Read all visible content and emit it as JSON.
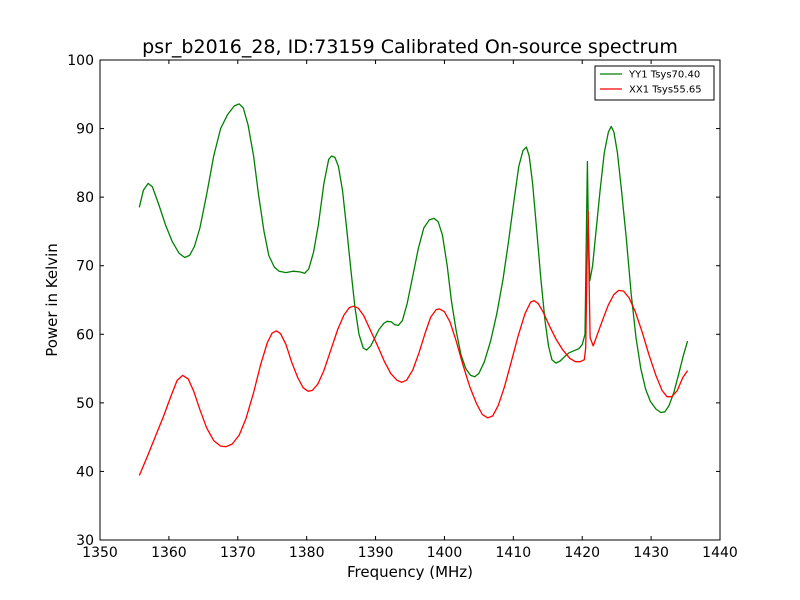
{
  "chart_data": {
    "type": "line",
    "title": "psr_b2016_28, ID:73159 Calibrated On-source spectrum",
    "xlabel": "Frequency (MHz)",
    "ylabel": "Power in Kelvin",
    "xlim": [
      1350,
      1440
    ],
    "ylim": [
      30,
      100
    ],
    "xticks": [
      "1350",
      "1360",
      "1370",
      "1380",
      "1390",
      "1400",
      "1410",
      "1420",
      "1430",
      "1440"
    ],
    "yticks": [
      "30",
      "40",
      "50",
      "60",
      "70",
      "80",
      "90",
      "100"
    ],
    "grid": false,
    "legend_position": "top-right",
    "series": [
      {
        "name": "YY1 Tsys70.40",
        "color": "#008000",
        "points": [
          [
            1355.7,
            78.5
          ],
          [
            1356.3,
            81
          ],
          [
            1357,
            82
          ],
          [
            1357.6,
            81.5
          ],
          [
            1358.5,
            79
          ],
          [
            1359.5,
            76
          ],
          [
            1360.5,
            73.5
          ],
          [
            1361.5,
            71.8
          ],
          [
            1362.3,
            71.2
          ],
          [
            1363,
            71.5
          ],
          [
            1363.7,
            72.8
          ],
          [
            1364.5,
            75.5
          ],
          [
            1365.5,
            80.5
          ],
          [
            1366.5,
            86
          ],
          [
            1367.5,
            90
          ],
          [
            1368.5,
            92
          ],
          [
            1369.5,
            93.3
          ],
          [
            1370.2,
            93.6
          ],
          [
            1370.8,
            93
          ],
          [
            1371.5,
            90.5
          ],
          [
            1372.3,
            86
          ],
          [
            1373,
            80.5
          ],
          [
            1373.8,
            75
          ],
          [
            1374.5,
            71.5
          ],
          [
            1375.3,
            69.8
          ],
          [
            1376,
            69.2
          ],
          [
            1377,
            69
          ],
          [
            1378,
            69.2
          ],
          [
            1379,
            69.1
          ],
          [
            1379.7,
            68.9
          ],
          [
            1380.3,
            69.5
          ],
          [
            1381,
            72
          ],
          [
            1381.7,
            76
          ],
          [
            1382.5,
            82
          ],
          [
            1383.2,
            85.5
          ],
          [
            1383.6,
            86
          ],
          [
            1384.1,
            85.8
          ],
          [
            1384.6,
            84.5
          ],
          [
            1385.2,
            81
          ],
          [
            1385.8,
            75.5
          ],
          [
            1386.4,
            69.5
          ],
          [
            1387,
            64
          ],
          [
            1387.6,
            60
          ],
          [
            1388.2,
            58
          ],
          [
            1388.7,
            57.7
          ],
          [
            1389.3,
            58.3
          ],
          [
            1389.9,
            59.5
          ],
          [
            1390.5,
            60.7
          ],
          [
            1391.2,
            61.6
          ],
          [
            1391.7,
            61.9
          ],
          [
            1392.3,
            61.8
          ],
          [
            1392.8,
            61.4
          ],
          [
            1393.3,
            61.3
          ],
          [
            1393.9,
            62
          ],
          [
            1394.6,
            64.5
          ],
          [
            1395.4,
            68.5
          ],
          [
            1396.2,
            72.5
          ],
          [
            1397,
            75.5
          ],
          [
            1397.8,
            76.7
          ],
          [
            1398.5,
            76.9
          ],
          [
            1399.1,
            76.4
          ],
          [
            1399.7,
            74.5
          ],
          [
            1400.4,
            70
          ],
          [
            1401,
            65
          ],
          [
            1401.7,
            60.5
          ],
          [
            1402.4,
            57
          ],
          [
            1403.1,
            55
          ],
          [
            1403.8,
            54
          ],
          [
            1404.4,
            53.8
          ],
          [
            1405,
            54.3
          ],
          [
            1405.8,
            56
          ],
          [
            1406.7,
            59
          ],
          [
            1407.6,
            63
          ],
          [
            1408.5,
            68
          ],
          [
            1409.3,
            73.5
          ],
          [
            1410.1,
            79.5
          ],
          [
            1410.8,
            84.5
          ],
          [
            1411.4,
            86.8
          ],
          [
            1411.9,
            87.3
          ],
          [
            1412.3,
            86
          ],
          [
            1412.8,
            82
          ],
          [
            1413.4,
            75
          ],
          [
            1414,
            68
          ],
          [
            1414.6,
            62
          ],
          [
            1415.1,
            58.3
          ],
          [
            1415.6,
            56.3
          ],
          [
            1416.2,
            55.8
          ],
          [
            1416.8,
            56.1
          ],
          [
            1417.4,
            56.7
          ],
          [
            1418.1,
            57.3
          ],
          [
            1418.8,
            57.6
          ],
          [
            1419.5,
            57.9
          ],
          [
            1420,
            58.5
          ],
          [
            1420.4,
            60
          ],
          [
            1420.6,
            75
          ],
          [
            1420.75,
            85.2
          ],
          [
            1420.9,
            75
          ],
          [
            1421.1,
            67.8
          ],
          [
            1421.5,
            70
          ],
          [
            1422,
            75
          ],
          [
            1422.6,
            81
          ],
          [
            1423.2,
            86.5
          ],
          [
            1423.8,
            89.5
          ],
          [
            1424.2,
            90.3
          ],
          [
            1424.6,
            89.5
          ],
          [
            1425.1,
            86.5
          ],
          [
            1425.7,
            81
          ],
          [
            1426.4,
            74
          ],
          [
            1427.1,
            66
          ],
          [
            1427.8,
            59.5
          ],
          [
            1428.5,
            55
          ],
          [
            1429.2,
            52
          ],
          [
            1429.9,
            50.2
          ],
          [
            1430.7,
            49.1
          ],
          [
            1431.4,
            48.6
          ],
          [
            1432,
            48.7
          ],
          [
            1432.6,
            49.6
          ],
          [
            1433.3,
            51.5
          ],
          [
            1434,
            54.2
          ],
          [
            1434.7,
            57
          ],
          [
            1435.3,
            59
          ]
        ]
      },
      {
        "name": "XX1 Tsys55.65",
        "color": "#ff0000",
        "points": [
          [
            1355.7,
            39.4
          ],
          [
            1356.8,
            42
          ],
          [
            1358,
            45
          ],
          [
            1359.2,
            48
          ],
          [
            1360.3,
            51
          ],
          [
            1361.2,
            53.3
          ],
          [
            1362,
            54
          ],
          [
            1362.8,
            53.5
          ],
          [
            1363.6,
            51.7
          ],
          [
            1364.5,
            49
          ],
          [
            1365.5,
            46.3
          ],
          [
            1366.5,
            44.5
          ],
          [
            1367.5,
            43.7
          ],
          [
            1368.3,
            43.6
          ],
          [
            1369.2,
            44
          ],
          [
            1370.2,
            45.3
          ],
          [
            1371.2,
            47.7
          ],
          [
            1372.3,
            51.5
          ],
          [
            1373.3,
            55.5
          ],
          [
            1374.3,
            58.8
          ],
          [
            1375,
            60.2
          ],
          [
            1375.6,
            60.5
          ],
          [
            1376.2,
            60.1
          ],
          [
            1377,
            58.5
          ],
          [
            1377.8,
            56
          ],
          [
            1378.7,
            53.7
          ],
          [
            1379.5,
            52.2
          ],
          [
            1380.2,
            51.7
          ],
          [
            1380.8,
            51.8
          ],
          [
            1381.6,
            52.7
          ],
          [
            1382.5,
            54.7
          ],
          [
            1383.5,
            57.7
          ],
          [
            1384.5,
            60.7
          ],
          [
            1385.4,
            62.8
          ],
          [
            1386.2,
            63.9
          ],
          [
            1386.8,
            64.1
          ],
          [
            1387.5,
            63.8
          ],
          [
            1388.3,
            62.7
          ],
          [
            1389.3,
            60.5
          ],
          [
            1390.3,
            58.3
          ],
          [
            1391.3,
            56
          ],
          [
            1392.2,
            54.3
          ],
          [
            1393.1,
            53.3
          ],
          [
            1393.8,
            53
          ],
          [
            1394.5,
            53.3
          ],
          [
            1395.4,
            54.8
          ],
          [
            1396.3,
            57.3
          ],
          [
            1397.2,
            60.2
          ],
          [
            1398,
            62.5
          ],
          [
            1398.8,
            63.6
          ],
          [
            1399.3,
            63.7
          ],
          [
            1400,
            63.3
          ],
          [
            1400.8,
            61.8
          ],
          [
            1401.7,
            59
          ],
          [
            1402.7,
            55.5
          ],
          [
            1403.7,
            52.3
          ],
          [
            1404.7,
            49.8
          ],
          [
            1405.5,
            48.3
          ],
          [
            1406.3,
            47.8
          ],
          [
            1407,
            48.1
          ],
          [
            1407.8,
            49.6
          ],
          [
            1408.7,
            52.3
          ],
          [
            1409.7,
            56
          ],
          [
            1410.7,
            59.8
          ],
          [
            1411.7,
            63
          ],
          [
            1412.5,
            64.7
          ],
          [
            1413,
            64.9
          ],
          [
            1413.6,
            64.5
          ],
          [
            1414.3,
            63.3
          ],
          [
            1415.2,
            61.3
          ],
          [
            1416.2,
            59.3
          ],
          [
            1417.2,
            57.7
          ],
          [
            1418.2,
            56.5
          ],
          [
            1419,
            56
          ],
          [
            1419.7,
            56
          ],
          [
            1420.3,
            56.3
          ],
          [
            1420.5,
            58
          ],
          [
            1420.7,
            70
          ],
          [
            1420.85,
            78
          ],
          [
            1421,
            68
          ],
          [
            1421.15,
            59.5
          ],
          [
            1421.6,
            58.3
          ],
          [
            1422.2,
            60
          ],
          [
            1423,
            62.2
          ],
          [
            1423.8,
            64.3
          ],
          [
            1424.6,
            65.8
          ],
          [
            1425.3,
            66.4
          ],
          [
            1426,
            66.3
          ],
          [
            1426.8,
            65.3
          ],
          [
            1427.7,
            63.3
          ],
          [
            1428.7,
            60.3
          ],
          [
            1429.7,
            57
          ],
          [
            1430.7,
            54
          ],
          [
            1431.6,
            51.8
          ],
          [
            1432.3,
            50.9
          ],
          [
            1433,
            50.9
          ],
          [
            1433.8,
            51.8
          ],
          [
            1434.6,
            53.7
          ],
          [
            1435.3,
            54.7
          ]
        ]
      }
    ]
  }
}
